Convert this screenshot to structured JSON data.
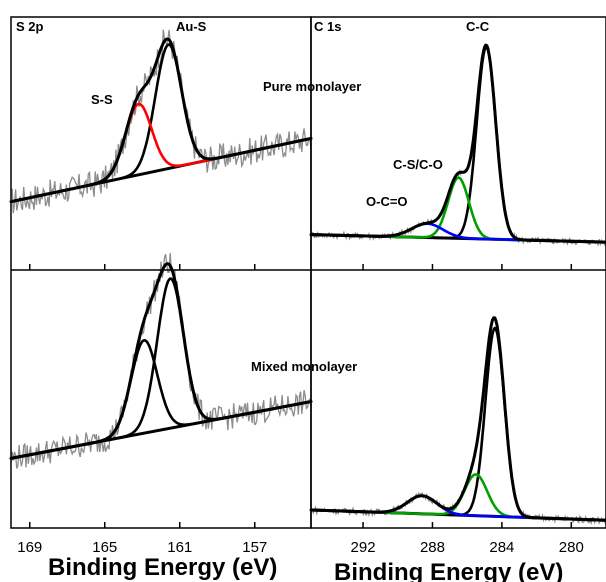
{
  "figure": {
    "middle_labels": [
      "Pure monolayer",
      "Mixed monolayer"
    ]
  },
  "chart_data": [
    {
      "type": "line",
      "panel": "S 2p (top-left)",
      "title": "S 2p",
      "xlabel": "Binding Energy (eV)",
      "xlim": [
        170,
        154
      ],
      "x_reversed": true,
      "ylim": [
        0,
        1
      ],
      "xticks": [
        169,
        165,
        161,
        157
      ],
      "series": [
        {
          "name": "Au-S",
          "type": "gaussian",
          "center": 161.6,
          "width": 0.7,
          "amplitude": 0.49,
          "color": "#000000"
        },
        {
          "name": "S-S",
          "type": "gaussian",
          "center": 163.2,
          "width": 0.7,
          "amplitude": 0.28,
          "color": "#ff0000"
        }
      ],
      "baseline": {
        "at_x_start": 0.27,
        "at_x_end": 0.52
      },
      "annotations": [
        "Au-S",
        "S-S"
      ],
      "noise_amplitude": 0.055
    },
    {
      "type": "line",
      "panel": "C 1s (top-right)",
      "title": "C 1s",
      "xlabel": "Binding Energy (eV)",
      "xlim": [
        295,
        278
      ],
      "x_reversed": true,
      "ylim": [
        0,
        1
      ],
      "xticks": [
        292,
        288,
        284,
        280
      ],
      "series": [
        {
          "name": "C-C",
          "type": "gaussian",
          "center": 284.9,
          "width": 0.55,
          "amplitude": 0.76,
          "color": "#000000"
        },
        {
          "name": "C-S/C-O",
          "type": "gaussian",
          "center": 286.5,
          "width": 0.6,
          "amplitude": 0.24,
          "color": "#00a000"
        },
        {
          "name": "O-C=O",
          "type": "gaussian",
          "center": 288.3,
          "width": 0.9,
          "amplitude": 0.055,
          "color": "#0000ff"
        }
      ],
      "baseline": {
        "at_x_start": 0.14,
        "at_x_end": 0.11
      },
      "annotations": [
        "C-C",
        "C-S/C-O",
        "O-C=O"
      ],
      "noise_amplitude": 0.012
    },
    {
      "type": "line",
      "panel": "S 2p (bottom-left)",
      "title": "",
      "xlabel": "Binding Energy (eV)",
      "xlim": [
        170,
        154
      ],
      "x_reversed": true,
      "ylim": [
        0,
        1
      ],
      "xticks": [
        169,
        165,
        161,
        157
      ],
      "series": [
        {
          "name": "",
          "type": "gaussian",
          "center": 161.5,
          "width": 0.7,
          "amplitude": 0.58,
          "color": "#000000"
        },
        {
          "name": "",
          "type": "gaussian",
          "center": 162.9,
          "width": 0.7,
          "amplitude": 0.36,
          "color": "#000000"
        }
      ],
      "baseline": {
        "at_x_start": 0.27,
        "at_x_end": 0.49
      },
      "annotations": [],
      "noise_amplitude": 0.05
    },
    {
      "type": "line",
      "panel": "C 1s (bottom-right)",
      "title": "",
      "xlabel": "Binding Energy (eV)",
      "xlim": [
        295,
        278
      ],
      "x_reversed": true,
      "ylim": [
        0,
        1
      ],
      "xticks": [
        292,
        288,
        284,
        280
      ],
      "series": [
        {
          "name": "",
          "type": "gaussian",
          "center": 284.4,
          "width": 0.55,
          "amplitude": 0.73,
          "color": "#000000"
        },
        {
          "name": "",
          "type": "gaussian",
          "center": 285.5,
          "width": 0.65,
          "amplitude": 0.16,
          "color": "#00a000"
        },
        {
          "name": "",
          "type": "gaussian",
          "center": 288.6,
          "width": 0.85,
          "amplitude": 0.07,
          "color": "#0000ff"
        }
      ],
      "baseline": {
        "at_x_start": 0.07,
        "at_x_end": 0.03
      },
      "annotations": [],
      "noise_amplitude": 0.012
    }
  ]
}
